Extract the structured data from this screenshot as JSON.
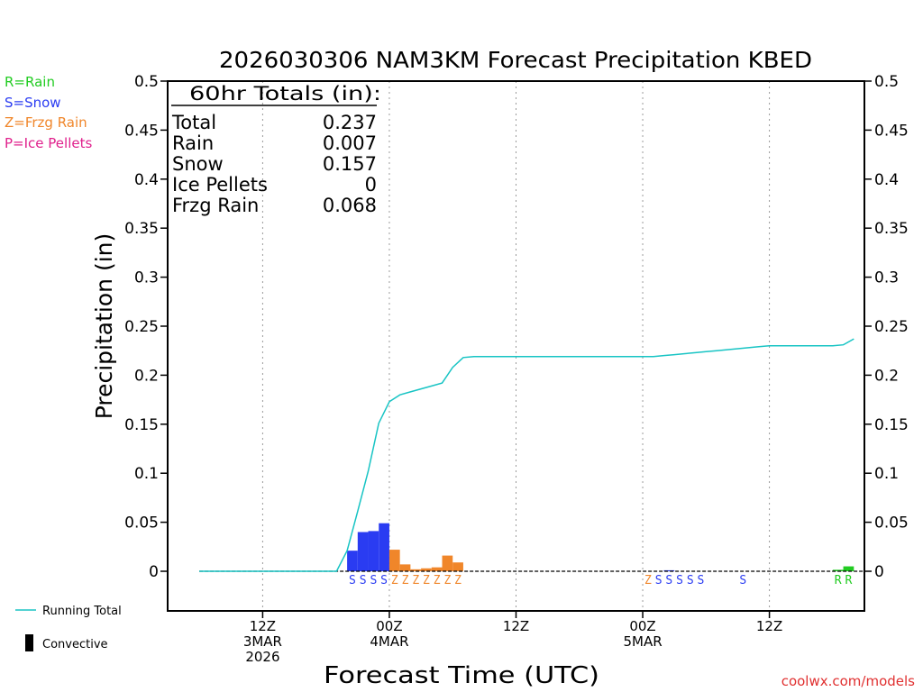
{
  "chart_data": {
    "type": "bar",
    "title": "2026030306 NAM3KM Forecast Precipitation KBED",
    "xlabel": "Forecast Time (UTC)",
    "ylabel": "Precipitation (in)",
    "ylim": [
      -0.04,
      0.5
    ],
    "xlim": [
      -3,
      63
    ],
    "y_ticks": [
      0,
      0.05,
      0.1,
      0.15,
      0.2,
      0.25,
      0.3,
      0.35,
      0.4,
      0.45,
      0.5
    ],
    "y_tick_labels": [
      "0",
      "0.05",
      "0.1",
      "0.15",
      "0.2",
      "0.25",
      "0.3",
      "0.35",
      "0.4",
      "0.45",
      "0.5"
    ],
    "x_ticks": [
      {
        "hour": 6,
        "lines": [
          "12Z",
          "3MAR",
          "2026"
        ]
      },
      {
        "hour": 18,
        "lines": [
          "00Z",
          "4MAR"
        ]
      },
      {
        "hour": 30,
        "lines": [
          "12Z"
        ]
      },
      {
        "hour": 42,
        "lines": [
          "00Z",
          "5MAR"
        ]
      },
      {
        "hour": 54,
        "lines": [
          "12Z"
        ]
      }
    ],
    "legend": [
      {
        "code": "R",
        "label": "R=Rain",
        "color": "#22cc22"
      },
      {
        "code": "S",
        "label": "S=Snow",
        "color": "#2a3cf2"
      },
      {
        "code": "Z",
        "label": "Z=Frzg Rain",
        "color": "#f0862a"
      },
      {
        "code": "P",
        "label": "P=Ice Pellets",
        "color": "#e0208c"
      }
    ],
    "bottom_legend": {
      "running_total": "Running Total",
      "convective": "Convective"
    },
    "totals": {
      "header": "60hr Totals (in):",
      "rows": [
        {
          "label": "Total",
          "value": "0.237"
        },
        {
          "label": "Rain",
          "value": "0.007"
        },
        {
          "label": "Snow",
          "value": "0.157"
        },
        {
          "label": "Ice Pellets",
          "value": "0"
        },
        {
          "label": "Frzg Rain",
          "value": "0.068"
        }
      ]
    },
    "bars": [
      {
        "hour": 15,
        "value": 0.021,
        "type": "S"
      },
      {
        "hour": 16,
        "value": 0.04,
        "type": "S"
      },
      {
        "hour": 17,
        "value": 0.041,
        "type": "S"
      },
      {
        "hour": 18,
        "value": 0.049,
        "type": "S"
      },
      {
        "hour": 19,
        "value": 0.022,
        "type": "Z"
      },
      {
        "hour": 20,
        "value": 0.007,
        "type": "Z"
      },
      {
        "hour": 21,
        "value": 0.002,
        "type": "Z"
      },
      {
        "hour": 22,
        "value": 0.003,
        "type": "Z"
      },
      {
        "hour": 23,
        "value": 0.004,
        "type": "Z"
      },
      {
        "hour": 24,
        "value": 0.016,
        "type": "Z"
      },
      {
        "hour": 25,
        "value": 0.009,
        "type": "Z"
      },
      {
        "hour": 45,
        "value": 0.001,
        "type": "S"
      },
      {
        "hour": 61,
        "value": 0.0015,
        "type": "R"
      },
      {
        "hour": 62,
        "value": 0.005,
        "type": "R"
      }
    ],
    "ptype_labels": [
      {
        "hour": 15,
        "type": "S"
      },
      {
        "hour": 16,
        "type": "S"
      },
      {
        "hour": 17,
        "type": "S"
      },
      {
        "hour": 18,
        "type": "S"
      },
      {
        "hour": 19,
        "type": "Z"
      },
      {
        "hour": 20,
        "type": "Z"
      },
      {
        "hour": 21,
        "type": "Z"
      },
      {
        "hour": 22,
        "type": "Z"
      },
      {
        "hour": 23,
        "type": "Z"
      },
      {
        "hour": 24,
        "type": "Z"
      },
      {
        "hour": 25,
        "type": "Z"
      },
      {
        "hour": 43,
        "type": "Z"
      },
      {
        "hour": 44,
        "type": "S"
      },
      {
        "hour": 45,
        "type": "S"
      },
      {
        "hour": 46,
        "type": "S"
      },
      {
        "hour": 47,
        "type": "S"
      },
      {
        "hour": 48,
        "type": "S"
      },
      {
        "hour": 52,
        "type": "S"
      },
      {
        "hour": 61,
        "type": "R"
      },
      {
        "hour": 62,
        "type": "R"
      }
    ],
    "running_total": {
      "color": "#18c4c4",
      "x": [
        0,
        12,
        13,
        14,
        15,
        16,
        17,
        18,
        19,
        20,
        21,
        22,
        23,
        24,
        25,
        26,
        27,
        28,
        30,
        36,
        42,
        43,
        44,
        45,
        46,
        47,
        48,
        49,
        50,
        51,
        52,
        53,
        54,
        55,
        56,
        57,
        58,
        59,
        60,
        61,
        62
      ],
      "y": [
        0,
        0,
        0,
        0.021,
        0.061,
        0.102,
        0.151,
        0.173,
        0.18,
        0.183,
        0.186,
        0.189,
        0.192,
        0.208,
        0.218,
        0.219,
        0.219,
        0.219,
        0.219,
        0.219,
        0.219,
        0.219,
        0.22,
        0.221,
        0.222,
        0.223,
        0.224,
        0.225,
        0.226,
        0.227,
        0.228,
        0.229,
        0.23,
        0.23,
        0.23,
        0.23,
        0.23,
        0.23,
        0.23,
        0.231,
        0.237
      ]
    }
  },
  "credit": "coolwx.com/models"
}
